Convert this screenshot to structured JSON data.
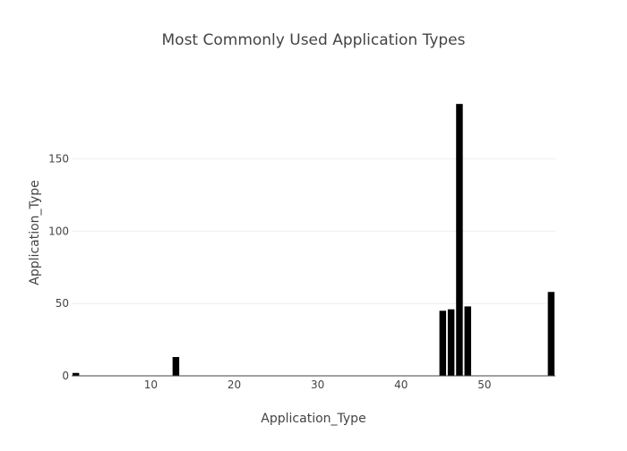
{
  "chart_data": {
    "type": "bar",
    "title": "Most Commonly Used Application Types",
    "xlabel": "Application_Type",
    "ylabel": "Application_Type",
    "x": [
      1,
      13,
      45,
      46,
      47,
      48,
      58
    ],
    "values": [
      2,
      13,
      45,
      46,
      188,
      48,
      58
    ],
    "xlim": [
      0.5,
      58.5
    ],
    "ylim": [
      0,
      198
    ],
    "xticks": [
      10,
      20,
      30,
      40,
      50
    ],
    "yticks": [
      0,
      50,
      100,
      150
    ],
    "grid": "horizontal",
    "bar_color": "#000000"
  }
}
